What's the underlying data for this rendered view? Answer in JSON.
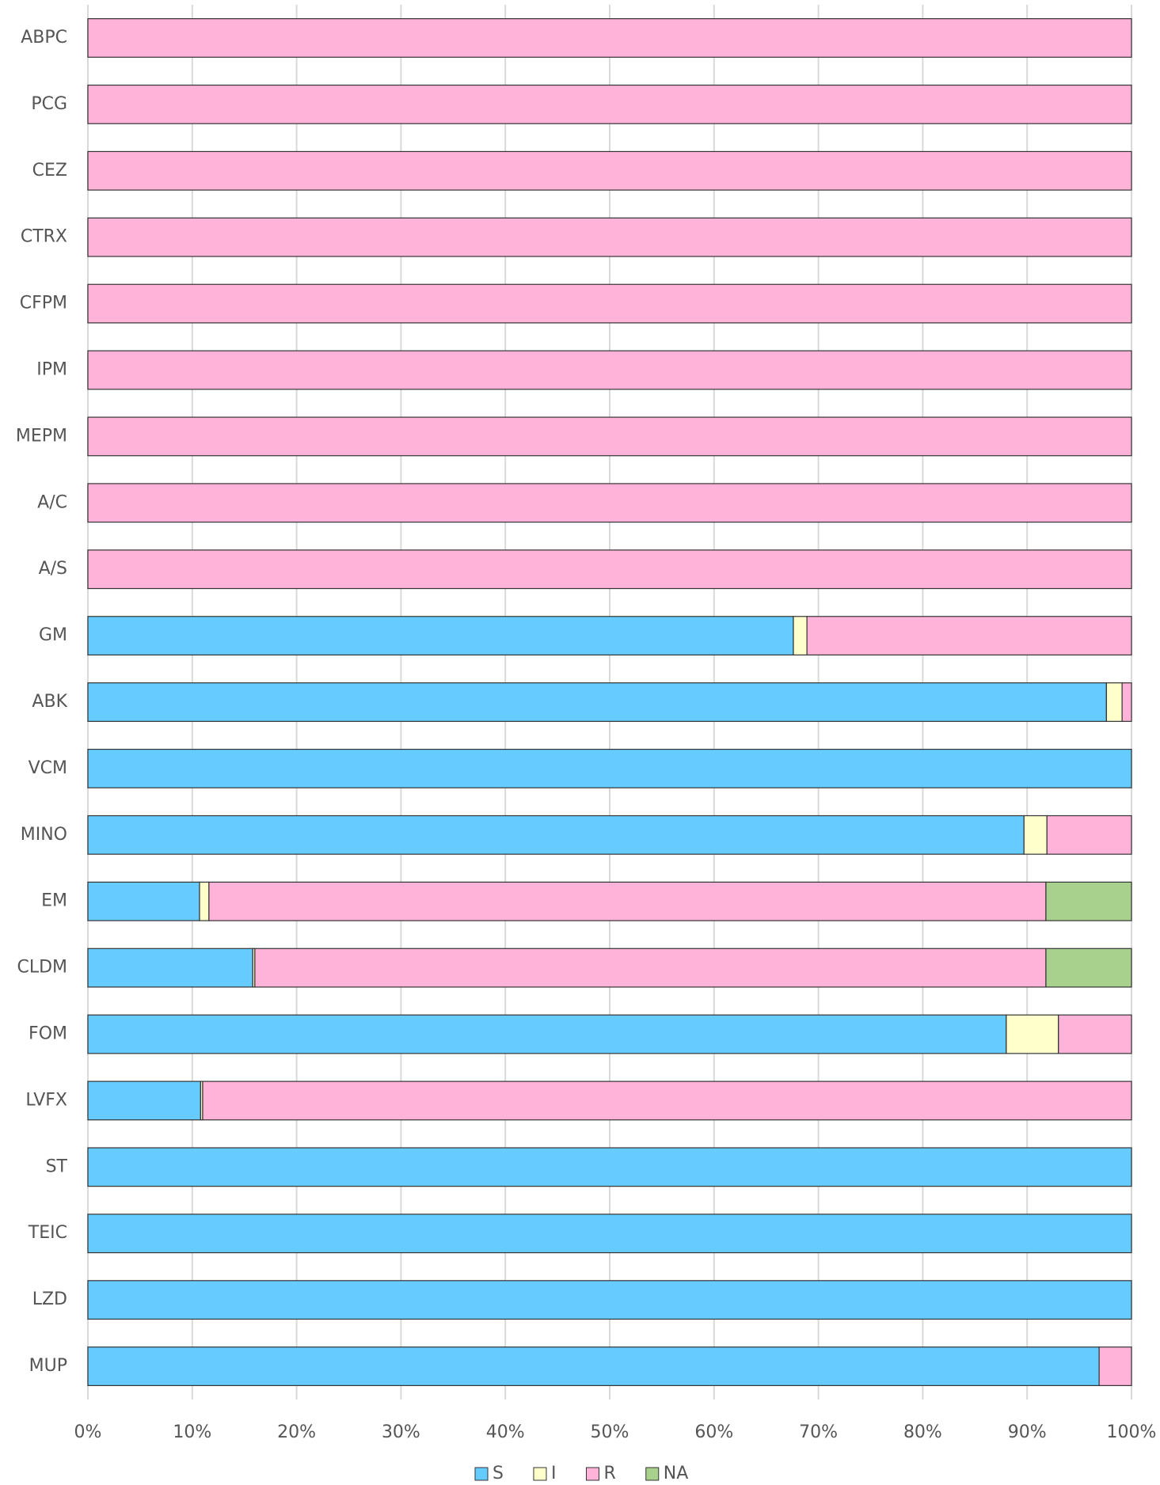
{
  "chart_data": {
    "type": "stacked-barh",
    "categories": [
      "ABPC",
      "PCG",
      "CEZ",
      "CTRX",
      "CFPM",
      "IPM",
      "MEPM",
      "A/C",
      "A/S",
      "GM",
      "ABK",
      "VCM",
      "MINO",
      "EM",
      "CLDM",
      "FOM",
      "LVFX",
      "ST",
      "TEIC",
      "LZD",
      "MUP"
    ],
    "series": [
      {
        "name": "S",
        "color": "#66ccff",
        "values": [
          0,
          0,
          0,
          0,
          0,
          0,
          0,
          0,
          0,
          67.6,
          97.6,
          100,
          89.7,
          10.7,
          15.8,
          88.0,
          10.8,
          100,
          100,
          100,
          96.9
        ]
      },
      {
        "name": "I",
        "color": "#ffffcc",
        "values": [
          0,
          0,
          0,
          0,
          0,
          0,
          0,
          0,
          0,
          1.3,
          1.5,
          0,
          2.2,
          0.9,
          0.2,
          5.0,
          0.2,
          0,
          0,
          0,
          0
        ]
      },
      {
        "name": "R",
        "color": "#ffb3d9",
        "values": [
          100,
          100,
          100,
          100,
          100,
          100,
          100,
          100,
          100,
          31.1,
          0.9,
          0,
          8.1,
          80.2,
          75.8,
          7.0,
          89.0,
          0,
          0,
          0,
          3.1
        ]
      },
      {
        "name": "NA",
        "color": "#a9d18e",
        "values": [
          0,
          0,
          0,
          0,
          0,
          0,
          0,
          0,
          0,
          0,
          0,
          0,
          0,
          8.2,
          8.2,
          0,
          0,
          0,
          0,
          0,
          0
        ]
      }
    ],
    "xlim": [
      0,
      100
    ],
    "xticks": [
      {
        "value": 0,
        "label": "0%"
      },
      {
        "value": 10,
        "label": "10%"
      },
      {
        "value": 20,
        "label": "20%"
      },
      {
        "value": 30,
        "label": "30%"
      },
      {
        "value": 40,
        "label": "40%"
      },
      {
        "value": 50,
        "label": "50%"
      },
      {
        "value": 60,
        "label": "60%"
      },
      {
        "value": 70,
        "label": "70%"
      },
      {
        "value": 80,
        "label": "80%"
      },
      {
        "value": 90,
        "label": "90%"
      },
      {
        "value": 100,
        "label": "100%"
      }
    ],
    "grid": true,
    "legend": "bottom"
  }
}
